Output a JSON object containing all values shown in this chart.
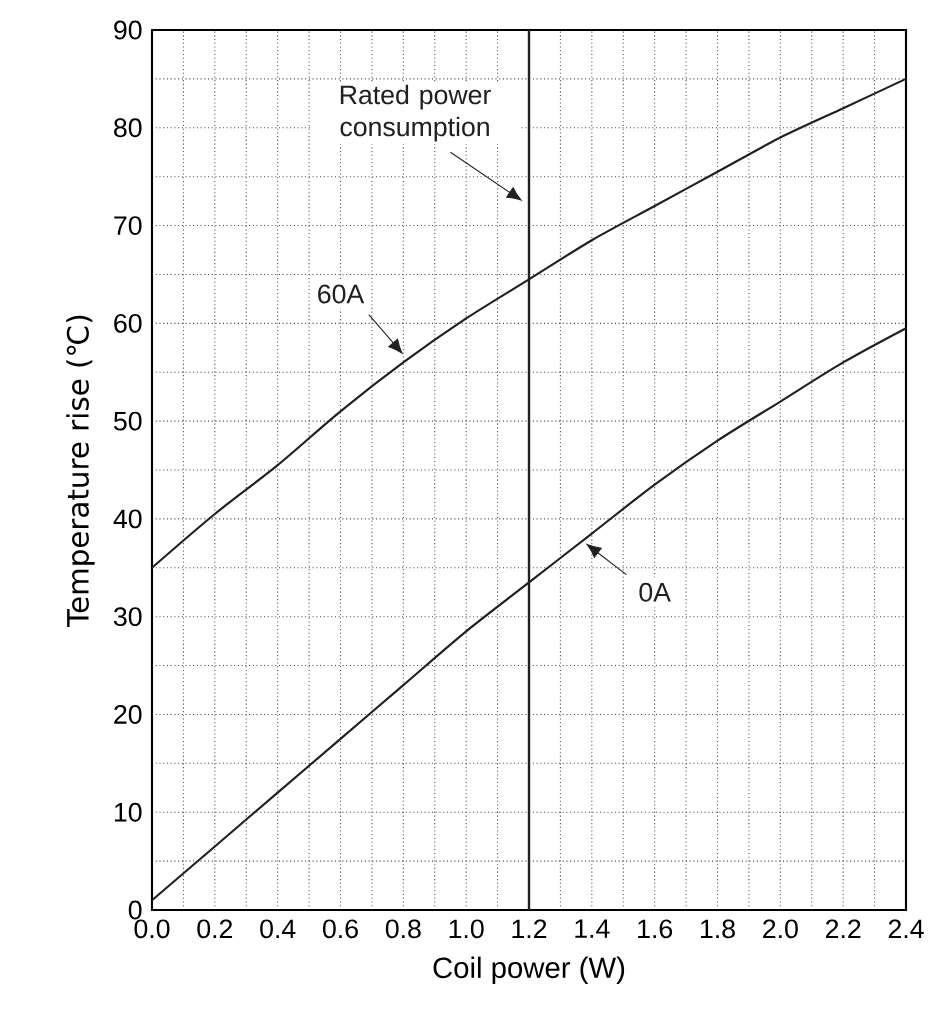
{
  "chart_data": {
    "type": "line",
    "xlabel": "Coil power (W)",
    "ylabel": "Temperature rise (℃)",
    "x": [
      0,
      0.2,
      0.4,
      0.6,
      0.8,
      1.0,
      1.2,
      1.4,
      1.6,
      1.8,
      2.0,
      2.2,
      2.4
    ],
    "series": [
      {
        "name": "60A",
        "color": "#231f20",
        "values": [
          35,
          40.5,
          45.5,
          51,
          56,
          60.5,
          64.5,
          68.5,
          72,
          75.5,
          79,
          82,
          85
        ]
      },
      {
        "name": "0A",
        "color": "#231f20",
        "values": [
          1,
          6.5,
          12,
          17.5,
          23,
          28.5,
          33.5,
          38.5,
          43.5,
          48,
          52,
          56,
          59.5
        ]
      }
    ],
    "xlim": [
      0,
      2.4
    ],
    "ylim": [
      0,
      90
    ],
    "xticks": [
      {
        "value": 0,
        "label": "0.0"
      },
      0.2,
      0.4,
      0.6,
      0.8,
      {
        "value": 1.0,
        "label": "1.0"
      },
      1.2,
      1.4,
      1.6,
      1.8,
      {
        "value": 2.0,
        "label": "2.0"
      },
      2.2,
      2.4
    ],
    "yticks": [
      0,
      10,
      20,
      30,
      40,
      50,
      60,
      70,
      80,
      90
    ],
    "ref_lines": [
      {
        "axis": "x",
        "value": 1.2,
        "label": "Rated power consumption",
        "color": "#231f20"
      }
    ],
    "grid": true,
    "marker": "none",
    "line_style": "solid"
  }
}
